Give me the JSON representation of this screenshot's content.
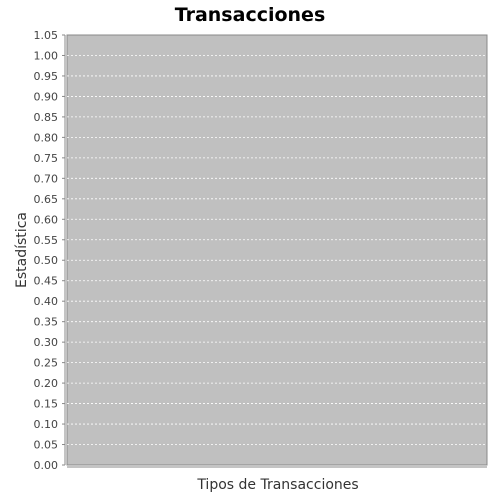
{
  "chart_data": {
    "type": "bar",
    "title": "Transacciones",
    "xlabel": "Tipos de Transacciones",
    "ylabel": "Estadística",
    "categories": [],
    "series": [],
    "ylim": [
      0,
      1.05
    ],
    "y_ticks": [
      "0.00",
      "0.05",
      "0.10",
      "0.15",
      "0.20",
      "0.25",
      "0.30",
      "0.35",
      "0.40",
      "0.45",
      "0.50",
      "0.55",
      "0.60",
      "0.65",
      "0.70",
      "0.75",
      "0.80",
      "0.85",
      "0.90",
      "0.95",
      "1.00",
      "1.05"
    ],
    "grid": true,
    "legend": "none"
  },
  "colors": {
    "plot_background": "#c0c0c0",
    "gridline": "#ffffff",
    "axis_text": "#444444"
  }
}
